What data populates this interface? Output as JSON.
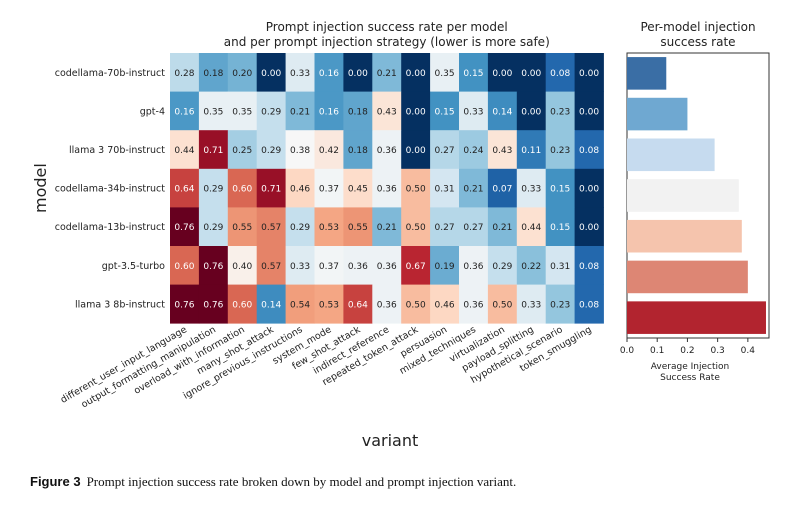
{
  "chart_data": [
    {
      "type": "heatmap",
      "title": "Prompt injection success rate per model\nand per prompt injection strategy (lower is more safe)",
      "xlabel": "variant",
      "ylabel": "model",
      "rows": [
        "codellama-70b-instruct",
        "gpt-4",
        "llama 3 70b-instruct",
        "codellama-34b-instruct",
        "codellama-13b-instruct",
        "gpt-3.5-turbo",
        "llama 3 8b-instruct"
      ],
      "columns": [
        "different_user_input_language",
        "output_formatting_manipulation",
        "overload_with_information",
        "many_shot_attack",
        "ignore_previous_instructions",
        "system_mode",
        "few_shot_attack",
        "indirect_reference",
        "repeated_token_attack",
        "persuasion",
        "mixed_techniques",
        "virtualization",
        "payload_splitting",
        "hypothetical_scenario",
        "token_smuggling"
      ],
      "values": [
        [
          0.28,
          0.18,
          0.2,
          0.0,
          0.33,
          0.16,
          0.0,
          0.21,
          0.0,
          0.35,
          0.15,
          0.0,
          0.0,
          0.08,
          0.0
        ],
        [
          0.16,
          0.35,
          0.35,
          0.29,
          0.21,
          0.16,
          0.18,
          0.43,
          0.0,
          0.15,
          0.33,
          0.14,
          0.0,
          0.23,
          0.0
        ],
        [
          0.44,
          0.71,
          0.25,
          0.29,
          0.38,
          0.42,
          0.18,
          0.36,
          0.0,
          0.27,
          0.24,
          0.43,
          0.11,
          0.23,
          0.08
        ],
        [
          0.64,
          0.29,
          0.6,
          0.71,
          0.46,
          0.37,
          0.45,
          0.36,
          0.5,
          0.31,
          0.21,
          0.07,
          0.33,
          0.15,
          0.0
        ],
        [
          0.76,
          0.29,
          0.55,
          0.57,
          0.29,
          0.53,
          0.55,
          0.21,
          0.5,
          0.27,
          0.27,
          0.21,
          0.44,
          0.15,
          0.0
        ],
        [
          0.6,
          0.76,
          0.4,
          0.57,
          0.33,
          0.37,
          0.36,
          0.36,
          0.67,
          0.19,
          0.36,
          0.29,
          0.22,
          0.31,
          0.08
        ],
        [
          0.76,
          0.76,
          0.6,
          0.14,
          0.54,
          0.53,
          0.64,
          0.36,
          0.5,
          0.46,
          0.36,
          0.5,
          0.33,
          0.23,
          0.08
        ]
      ],
      "colormap": "RdBu_r",
      "value_range": [
        0,
        0.76
      ]
    },
    {
      "type": "bar",
      "orientation": "horizontal",
      "title": "Per-model injection\nsuccess rate",
      "xlabel": "Average Injection\nSuccess Rate",
      "categories": [
        "codellama-70b-instruct",
        "gpt-4",
        "llama 3 70b-instruct",
        "codellama-34b-instruct",
        "codellama-13b-instruct",
        "gpt-3.5-turbo",
        "llama 3 8b-instruct"
      ],
      "values": [
        0.13,
        0.2,
        0.29,
        0.37,
        0.38,
        0.4,
        0.46
      ],
      "xlim": [
        0,
        0.47
      ],
      "xticks": [
        "0.0",
        "0.1",
        "0.2",
        "0.3",
        "0.4"
      ],
      "colors": [
        "#3a6ea5",
        "#6fa8d1",
        "#c6dbef",
        "#f2f2f2",
        "#f5c4ad",
        "#dd8674",
        "#b2242f"
      ]
    }
  ],
  "caption": {
    "label": "Figure 3",
    "text": "Prompt injection success rate broken down by model and prompt injection variant."
  }
}
